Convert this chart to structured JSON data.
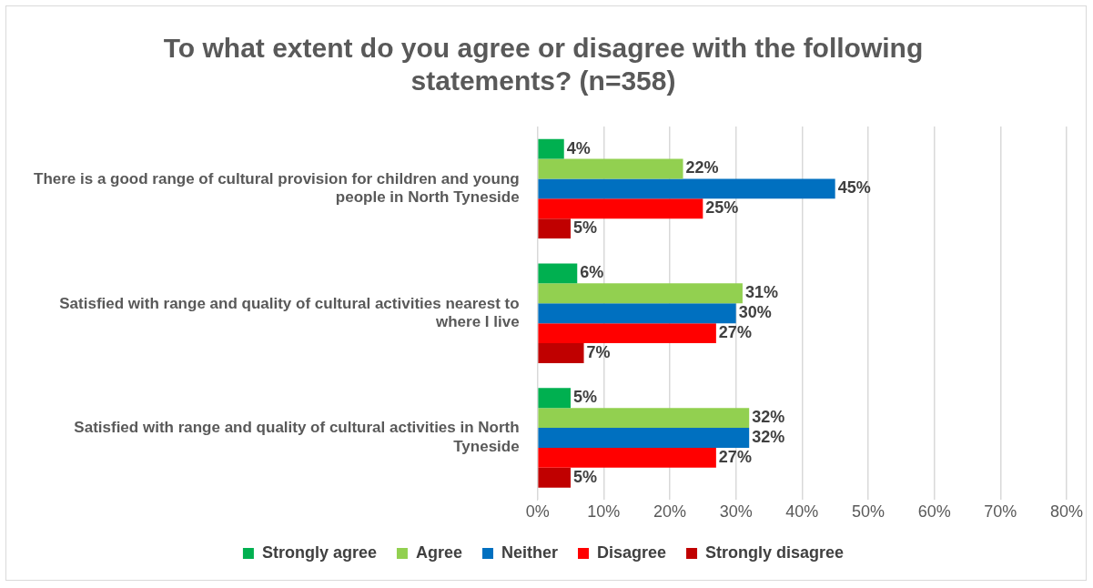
{
  "chart_data": {
    "type": "bar",
    "orientation": "horizontal",
    "title": "To what extent do you agree or disagree with the following statements? (n=358)",
    "categories": [
      "There is a good range of cultural provision for children and young people in North Tyneside",
      "Satisfied with range and quality of cultural activities nearest to where I live",
      "Satisfied with range and quality of cultural activities in North Tyneside"
    ],
    "series": [
      {
        "name": "Strongly agree",
        "color": "#00b050",
        "values": [
          4,
          6,
          5
        ],
        "value_labels": [
          "4%",
          "6%",
          "5%"
        ]
      },
      {
        "name": "Agree",
        "color": "#92d050",
        "values": [
          22,
          31,
          32
        ],
        "value_labels": [
          "22%",
          "31%",
          "32%"
        ]
      },
      {
        "name": "Neither",
        "color": "#0070c0",
        "values": [
          45,
          30,
          32
        ],
        "value_labels": [
          "45%",
          "30%",
          "32%"
        ]
      },
      {
        "name": "Disagree",
        "color": "#ff0000",
        "values": [
          25,
          27,
          27
        ],
        "value_labels": [
          "25%",
          "27%",
          "27%"
        ]
      },
      {
        "name": "Strongly disagree",
        "color": "#c00000",
        "values": [
          5,
          7,
          5
        ],
        "value_labels": [
          "5%",
          "7%",
          "5%"
        ]
      }
    ],
    "xlim": [
      0,
      80
    ],
    "xticks": [
      {
        "value": 0,
        "label": "0%"
      },
      {
        "value": 10,
        "label": "10%"
      },
      {
        "value": 20,
        "label": "20%"
      },
      {
        "value": 30,
        "label": "30%"
      },
      {
        "value": 40,
        "label": "40%"
      },
      {
        "value": 50,
        "label": "50%"
      },
      {
        "value": 60,
        "label": "60%"
      },
      {
        "value": 70,
        "label": "70%"
      },
      {
        "value": 80,
        "label": "80%"
      }
    ],
    "grid": "x",
    "legend": "bottom"
  }
}
